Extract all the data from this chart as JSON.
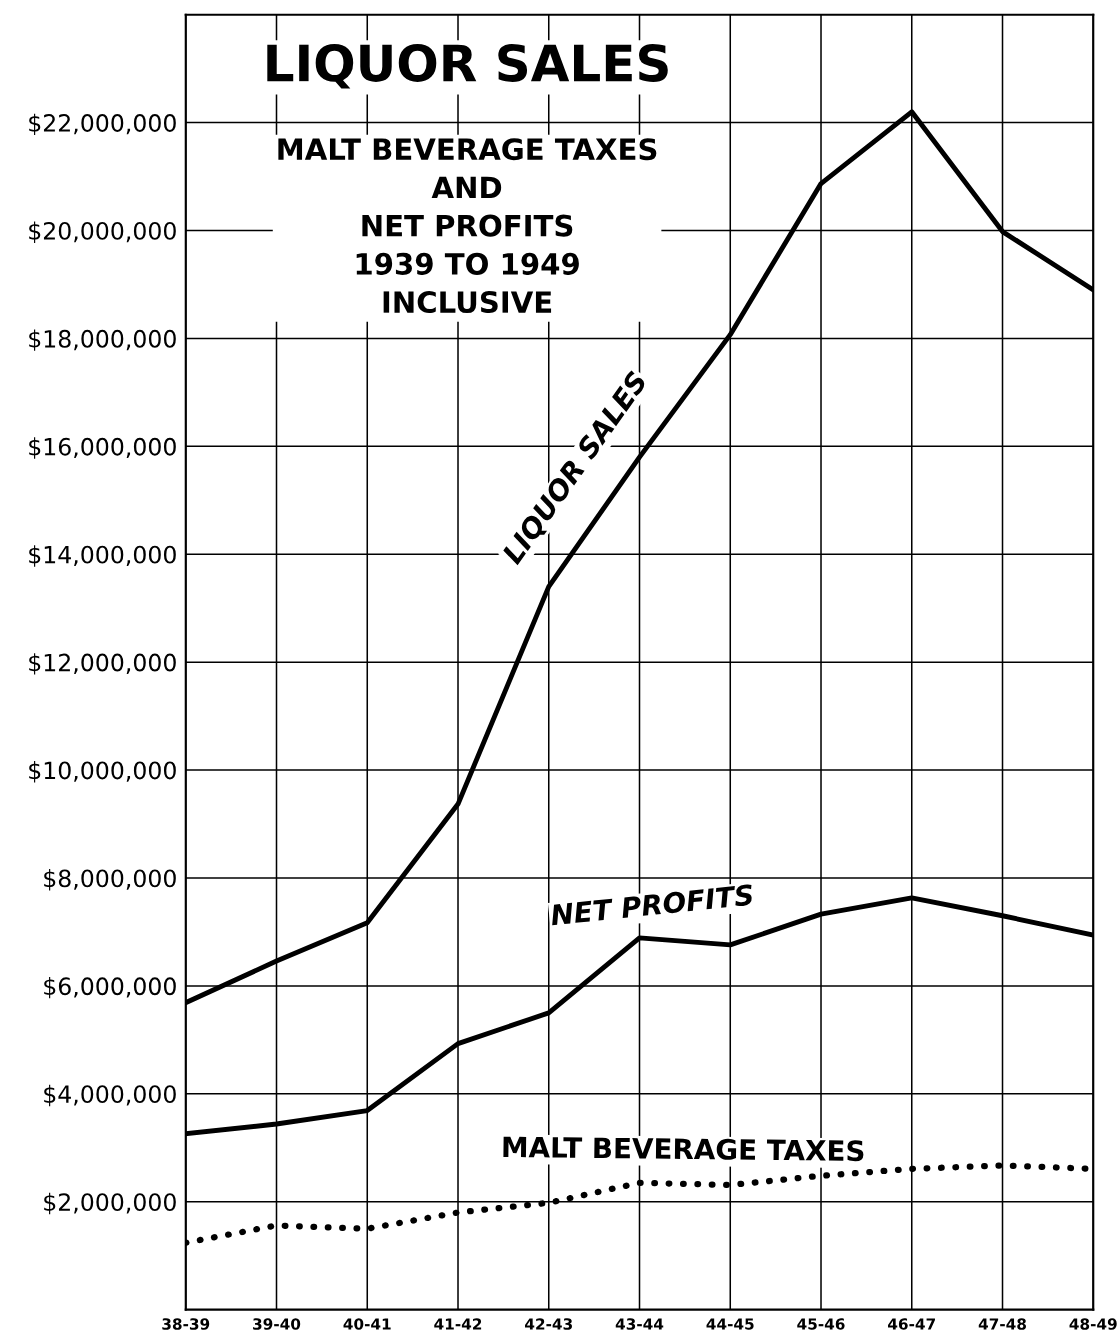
{
  "chart_data": {
    "type": "line",
    "title": "LIQUOR SALES",
    "subtitle": "MALT BEVERAGE TAXES\nAND\nNET PROFITS\n1939 TO 1949\nINCLUSIVE",
    "categories": [
      "38-39",
      "39-40",
      "40-41",
      "41-42",
      "42-43",
      "43-44",
      "44-45",
      "45-46",
      "46-47",
      "47-48",
      "48-49"
    ],
    "series": [
      {
        "name": "LIQUOR SALES",
        "color": "#000000",
        "line_style": "solid",
        "values": [
          5690000,
          6460000,
          7170000,
          9370000,
          13400000,
          15800000,
          18070000,
          20870000,
          22200000,
          19980000,
          18900000
        ]
      },
      {
        "name": "NET PROFITS",
        "color": "#000000",
        "line_style": "solid",
        "values": [
          3260000,
          3440000,
          3690000,
          4930000,
          5500000,
          6890000,
          6760000,
          7330000,
          7630000,
          7300000,
          6940000
        ]
      },
      {
        "name": "MALT BEVERAGE TAXES",
        "color": "#000000",
        "line_style": "dotted",
        "values": [
          1240000,
          1560000,
          1500000,
          1800000,
          1980000,
          2350000,
          2310000,
          2480000,
          2610000,
          2670000,
          2610000
        ]
      }
    ],
    "ylim": [
      0,
      24000000
    ],
    "yticks": [
      {
        "value": 2000000,
        "label": "$2,000,000"
      },
      {
        "value": 4000000,
        "label": "$4,000,000"
      },
      {
        "value": 6000000,
        "label": "$6,000,000"
      },
      {
        "value": 8000000,
        "label": "$8,000,000"
      },
      {
        "value": 10000000,
        "label": "$10,000,000"
      },
      {
        "value": 12000000,
        "label": "$12,000,000"
      },
      {
        "value": 14000000,
        "label": "$14,000,000"
      },
      {
        "value": 16000000,
        "label": "$16,000,000"
      },
      {
        "value": 18000000,
        "label": "$18,000,000"
      },
      {
        "value": 20000000,
        "label": "$20,000,000"
      },
      {
        "value": 22000000,
        "label": "$22,000,000"
      }
    ],
    "grid": true,
    "legend": false,
    "marker": "none"
  }
}
